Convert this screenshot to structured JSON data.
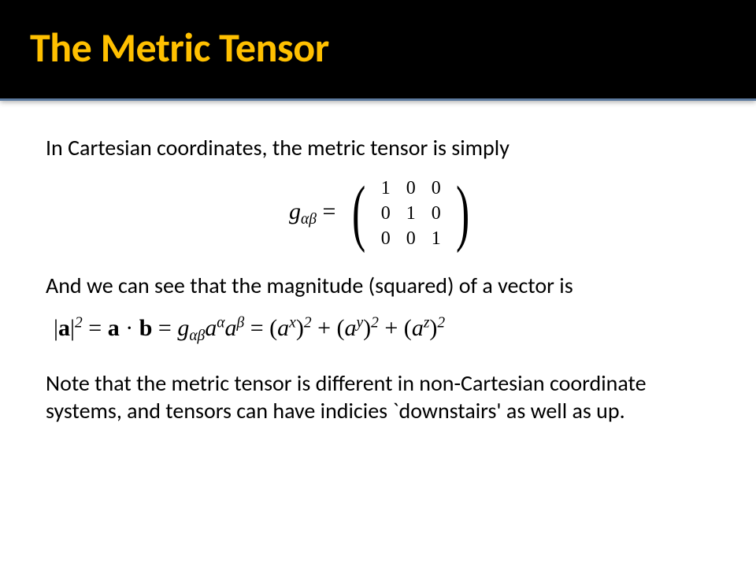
{
  "header": {
    "title": "The Metric Tensor",
    "title_color": "#ffc000",
    "background": "#000000",
    "underline_color": "#5c7a9e"
  },
  "body": {
    "para1": "In Cartesian coordinates, the metric tensor is simply",
    "para2": "And we can see that the magnitude (squared) of a vector is",
    "para3_a": " Note that the metric tensor is different in non-Cartesian coordinate systems, and tensors can have indicies `downstairs' as well as up."
  },
  "equation1": {
    "lhs_symbol": "g",
    "lhs_sub": "αβ",
    "equals": " = ",
    "matrix": {
      "rows": 3,
      "cols": 3,
      "cells": [
        "1",
        "0",
        "0",
        "0",
        "1",
        "0",
        "0",
        "0",
        "1"
      ]
    }
  },
  "equation2": {
    "text_parts": {
      "abs_open": "|",
      "a_bold": "a",
      "abs_close": "|",
      "sq": "2",
      "eq1": " = ",
      "b_bold": "b",
      "dot": " · ",
      "eq2": " = ",
      "g": "g",
      "g_sub": "αβ",
      "a1": "a",
      "a1_sup": "α",
      "a2": "a",
      "a2_sup": "β",
      "eq3": " = (",
      "ax": "a",
      "ax_sup": "x",
      "rp1": ")",
      "p1": "2",
      "plus1": " + (",
      "ay": "a",
      "ay_sup": "y",
      "rp2": ")",
      "p2": "2",
      "plus2": " + (",
      "az": "a",
      "az_sup": "z",
      "rp3": ")",
      "p3": "2"
    }
  },
  "typography": {
    "title_fontsize": 52,
    "body_fontsize": 28,
    "equation_fontsize": 30,
    "body_color": "#000000",
    "background_color": "#ffffff"
  }
}
